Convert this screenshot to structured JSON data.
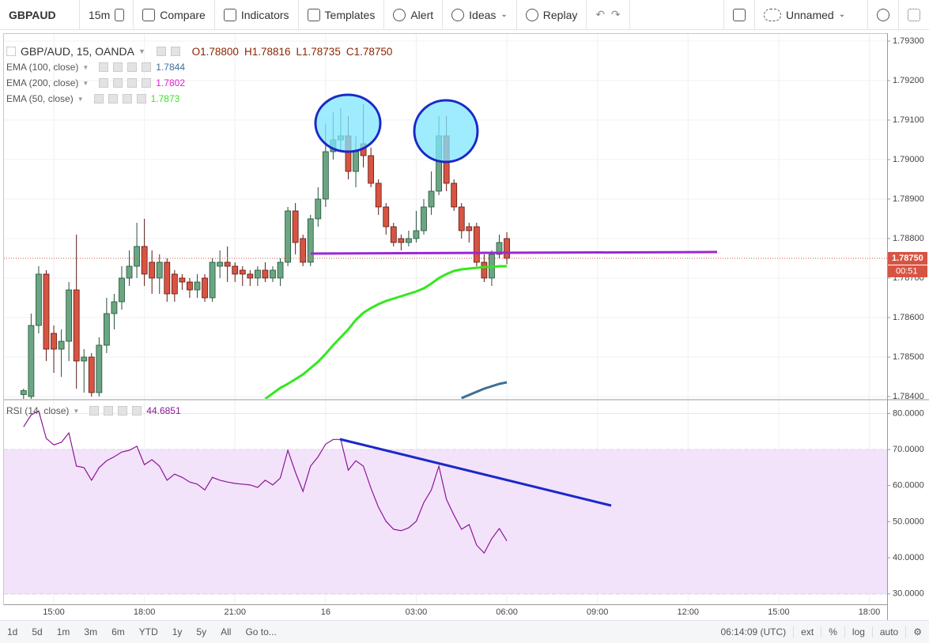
{
  "toolbar": {
    "symbol": "GBPAUD",
    "interval": "15m",
    "buttons": [
      "Compare",
      "Indicators",
      "Templates",
      "Alert",
      "Ideas",
      "Replay"
    ],
    "layout_name": "Unnamed"
  },
  "chart_data": [
    {
      "type": "candlestick",
      "title": "GBP/AUD, 15, OANDA",
      "ohlc": [
        "O1.78800",
        "H1.78816",
        "L1.78735",
        "C1.78750"
      ],
      "up_color": "#6ba583",
      "down_color": "#d75442",
      "x": [
        14,
        14.25,
        14.5,
        14.75,
        15,
        15.25,
        15.5,
        15.75,
        16,
        16.25,
        16.5,
        16.75,
        17,
        17.25,
        17.5,
        17.75,
        18,
        18.25,
        18.5,
        18.75,
        19,
        19.25,
        19.5,
        19.75,
        20,
        20.25,
        20.5,
        20.75,
        21,
        21.25,
        21.5,
        21.75,
        22,
        22.25,
        22.5,
        22.75,
        23,
        23.25,
        23.5,
        23.75,
        24,
        24.25,
        24.5,
        24.75,
        25,
        25.25,
        25.5,
        25.75,
        26,
        26.25,
        26.5,
        26.75,
        27,
        27.25,
        27.5,
        27.75,
        28,
        28.25,
        28.5,
        28.75,
        29,
        29.25,
        29.5,
        29.75,
        30
      ],
      "open": [
        1.78405,
        1.784,
        1.7858,
        1.7871,
        1.7856,
        1.7852,
        1.7854,
        1.7867,
        1.7849,
        1.785,
        1.7841,
        1.7853,
        1.7861,
        1.7864,
        1.787,
        1.7873,
        1.7878,
        1.7874,
        1.787,
        1.7874,
        1.7871,
        1.787,
        1.7869,
        1.7867,
        1.787,
        1.7865,
        1.7873,
        1.7874,
        1.7873,
        1.7872,
        1.7871,
        1.787,
        1.7872,
        1.787,
        1.787,
        1.7874,
        1.7887,
        1.788,
        1.7874,
        1.7885,
        1.789,
        1.7902,
        1.7905,
        1.7906,
        1.7897,
        1.7904,
        1.7901,
        1.7894,
        1.7888,
        1.7883,
        1.788,
        1.7879,
        1.788,
        1.7882,
        1.7888,
        1.7892,
        1.7906,
        1.7894,
        1.7888,
        1.7883,
        1.7883,
        1.7874,
        1.787,
        1.7876,
        1.788
      ],
      "high": [
        1.7842,
        1.7861,
        1.7873,
        1.7872,
        1.7858,
        1.7857,
        1.7869,
        1.7881,
        1.7852,
        1.7851,
        1.7855,
        1.7865,
        1.7866,
        1.7873,
        1.7877,
        1.7884,
        1.7885,
        1.7877,
        1.7876,
        1.7875,
        1.7872,
        1.7871,
        1.787,
        1.7871,
        1.7871,
        1.7875,
        1.7877,
        1.7878,
        1.7874,
        1.7873,
        1.7872,
        1.7873,
        1.7874,
        1.7873,
        1.7875,
        1.7888,
        1.7889,
        1.7881,
        1.7886,
        1.7893,
        1.7909,
        1.7912,
        1.7913,
        1.7911,
        1.7906,
        1.7914,
        1.7903,
        1.7895,
        1.7889,
        1.7884,
        1.7881,
        1.7882,
        1.7887,
        1.789,
        1.7897,
        1.7911,
        1.7911,
        1.7895,
        1.7889,
        1.7884,
        1.7884,
        1.7876,
        1.7877,
        1.7881,
        1.78816
      ],
      "low": [
        1.7838,
        1.7838,
        1.7856,
        1.7849,
        1.7846,
        1.7845,
        1.7849,
        1.7842,
        1.7841,
        1.784,
        1.784,
        1.7851,
        1.7857,
        1.7862,
        1.7868,
        1.787,
        1.7868,
        1.7866,
        1.7866,
        1.7864,
        1.7864,
        1.7867,
        1.7865,
        1.7865,
        1.7864,
        1.7864,
        1.787,
        1.7869,
        1.7869,
        1.7868,
        1.7868,
        1.7868,
        1.7869,
        1.7869,
        1.7868,
        1.7873,
        1.7876,
        1.7873,
        1.7873,
        1.7883,
        1.7888,
        1.79,
        1.7902,
        1.7895,
        1.7893,
        1.7898,
        1.7893,
        1.7886,
        1.7881,
        1.7878,
        1.7877,
        1.7878,
        1.7879,
        1.7881,
        1.7886,
        1.7891,
        1.7892,
        1.7887,
        1.788,
        1.7879,
        1.7873,
        1.7869,
        1.7868,
        1.7875,
        1.78735
      ],
      "close": [
        1.78415,
        1.7858,
        1.7871,
        1.7852,
        1.7852,
        1.7854,
        1.7867,
        1.7849,
        1.785,
        1.7841,
        1.7853,
        1.7861,
        1.7864,
        1.787,
        1.7873,
        1.7878,
        1.7871,
        1.787,
        1.7874,
        1.7866,
        1.7866,
        1.7869,
        1.7867,
        1.7869,
        1.7865,
        1.7874,
        1.7874,
        1.7873,
        1.7871,
        1.7871,
        1.787,
        1.7872,
        1.787,
        1.7872,
        1.7874,
        1.7887,
        1.7879,
        1.7874,
        1.7885,
        1.789,
        1.7902,
        1.7905,
        1.7906,
        1.7897,
        1.7902,
        1.7901,
        1.7894,
        1.7888,
        1.7883,
        1.7879,
        1.7879,
        1.788,
        1.7882,
        1.7888,
        1.7892,
        1.7906,
        1.7894,
        1.7888,
        1.7882,
        1.7882,
        1.7874,
        1.787,
        1.7876,
        1.7879,
        1.7875
      ],
      "series": [
        {
          "name": "EMA (100, close)",
          "color": "#3d6f96",
          "legend_value": 1.7844,
          "values": [
            null,
            null,
            null,
            null,
            null,
            null,
            null,
            null,
            null,
            null,
            null,
            null,
            null,
            null,
            null,
            null,
            null,
            null,
            null,
            null,
            null,
            null,
            null,
            null,
            null,
            null,
            null,
            null,
            null,
            null,
            null,
            null,
            null,
            null,
            null,
            null,
            null,
            null,
            null,
            null,
            null,
            null,
            null,
            null,
            null,
            null,
            null,
            null,
            null,
            null,
            null,
            null,
            null,
            null,
            null,
            null,
            null,
            null,
            1.78396,
            1.78404,
            1.78412,
            1.7842,
            1.78426,
            1.78432,
            1.78436
          ]
        },
        {
          "name": "EMA (200, close)",
          "color": "#e01fd0",
          "legend_value": 1.7802
        },
        {
          "name": "EMA (50, close)",
          "color": "#33e81e",
          "legend_value": 1.7873,
          "values": [
            null,
            null,
            null,
            null,
            null,
            null,
            null,
            null,
            null,
            null,
            null,
            null,
            null,
            null,
            null,
            null,
            null,
            null,
            null,
            null,
            null,
            null,
            null,
            null,
            null,
            null,
            null,
            null,
            null,
            null,
            null,
            null,
            1.78394,
            1.78408,
            1.78422,
            1.78432,
            1.78444,
            1.78456,
            1.78472,
            1.78488,
            1.78508,
            1.7853,
            1.7855,
            1.7857,
            1.78594,
            1.78612,
            1.78624,
            1.78634,
            1.78642,
            1.78648,
            1.78654,
            1.7866,
            1.78666,
            1.78674,
            1.78686,
            1.787,
            1.7871,
            1.78718,
            1.78722,
            1.78724,
            1.78726,
            1.78728,
            1.78728,
            1.7873,
            1.7873
          ]
        }
      ],
      "last_price": {
        "value": 1.7875,
        "label": "1.78750"
      },
      "countdown": "00:51",
      "xlim": [
        13.35,
        42.59
      ],
      "xticks": [
        {
          "value": 15,
          "label": "15:00"
        },
        {
          "value": 18,
          "label": "18:00"
        },
        {
          "value": 21,
          "label": "21:00"
        },
        {
          "value": 24,
          "label": "16"
        },
        {
          "value": 27,
          "label": "03:00"
        },
        {
          "value": 30,
          "label": "06:00"
        },
        {
          "value": 33,
          "label": "09:00"
        },
        {
          "value": 36,
          "label": "12:00"
        },
        {
          "value": 39,
          "label": "15:00"
        },
        {
          "value": 42,
          "label": "18:00"
        }
      ],
      "ylim": [
        1.78394,
        1.79318
      ],
      "yticks": [
        {
          "value": 1.793,
          "label": "1.79300"
        },
        {
          "value": 1.792,
          "label": "1.79200"
        },
        {
          "value": 1.791,
          "label": "1.79100"
        },
        {
          "value": 1.79,
          "label": "1.79000"
        },
        {
          "value": 1.789,
          "label": "1.78900"
        },
        {
          "value": 1.788,
          "label": "1.78800"
        },
        {
          "value": 1.787,
          "label": "1.78700"
        },
        {
          "value": 1.786,
          "label": "1.78600"
        },
        {
          "value": 1.785,
          "label": "1.78500"
        },
        {
          "value": 1.784,
          "label": "1.78400"
        }
      ],
      "grid": true
    },
    {
      "type": "line",
      "series": [
        {
          "name": "RSI (14, close)",
          "color": "#8e1599",
          "legend_value": 44.6851,
          "values": [
            76.3,
            79.6,
            80.7,
            73.1,
            71.3,
            72,
            74.6,
            65.4,
            65,
            61.5,
            65,
            66.9,
            68,
            69.3,
            69.8,
            70.9,
            65.8,
            67.2,
            65.4,
            61.5,
            63.2,
            62.3,
            61,
            60.4,
            58.8,
            62.3,
            61.5,
            61,
            60.6,
            60.4,
            60.2,
            59.5,
            61.5,
            60.2,
            62.1,
            69.8,
            63.7,
            58.4,
            65.4,
            68,
            71.5,
            72.8,
            72.8,
            64.3,
            66.9,
            65.4,
            59.3,
            54,
            50.1,
            47.9,
            47.5,
            48.3,
            50.1,
            55.3,
            58.8,
            65.4,
            56.2,
            51.8,
            47.9,
            49.2,
            43.5,
            41.3,
            45.3,
            48.1,
            44.6851
          ]
        }
      ],
      "band": [
        30,
        70
      ],
      "band_color": "#f2e3fa",
      "ylim": [
        27.1,
        83.6
      ],
      "yticks": [
        {
          "value": 80,
          "label": "80.0000"
        },
        {
          "value": 70,
          "label": "70.0000"
        },
        {
          "value": 60,
          "label": "60.0000"
        },
        {
          "value": 50,
          "label": "50.0000"
        },
        {
          "value": 40,
          "label": "40.0000"
        },
        {
          "value": 30,
          "label": "30.0000"
        }
      ],
      "grid": true
    }
  ],
  "bottom_bar": {
    "ranges": [
      "1d",
      "5d",
      "1m",
      "3m",
      "6m",
      "YTD",
      "1y",
      "5y",
      "All"
    ],
    "goto": "Go to...",
    "clock": "06:14:09 (UTC)",
    "options": [
      "ext",
      "%",
      "log",
      "auto"
    ]
  }
}
